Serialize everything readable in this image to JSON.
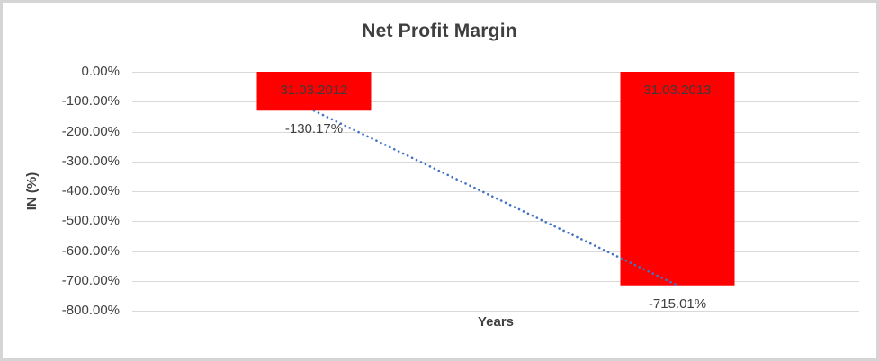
{
  "chart_data": {
    "type": "bar",
    "title": "Net Profit Margin",
    "xlabel": "Years",
    "ylabel": "IN (%)",
    "categories": [
      "31.03.2012",
      "31.03.2013"
    ],
    "series": [
      {
        "name": "Net Profit Margin",
        "values": [
          -130.17,
          -715.01
        ]
      }
    ],
    "values": [
      -130.17,
      -715.01
    ],
    "value_labels": [
      "-130.17%",
      "-715.01%"
    ],
    "ylim": [
      0,
      -800
    ],
    "yticks": [
      0,
      -100,
      -200,
      -300,
      -400,
      -500,
      -600,
      -700,
      -800
    ],
    "ytick_labels": [
      "0.00%",
      "-100.00%",
      "-200.00%",
      "-300.00%",
      "-400.00%",
      "-500.00%",
      "-600.00%",
      "-700.00%",
      "-800.00%"
    ],
    "grid": true,
    "legend": false,
    "trendline": {
      "type": "linear",
      "style": "dotted",
      "color": "#4472c4"
    },
    "colors": {
      "bar": "#ff0000",
      "gridline": "#d9d9d9",
      "tick_text": "#404040",
      "title_text": "#3f3f3f",
      "frame": "#d5d5d5"
    }
  }
}
